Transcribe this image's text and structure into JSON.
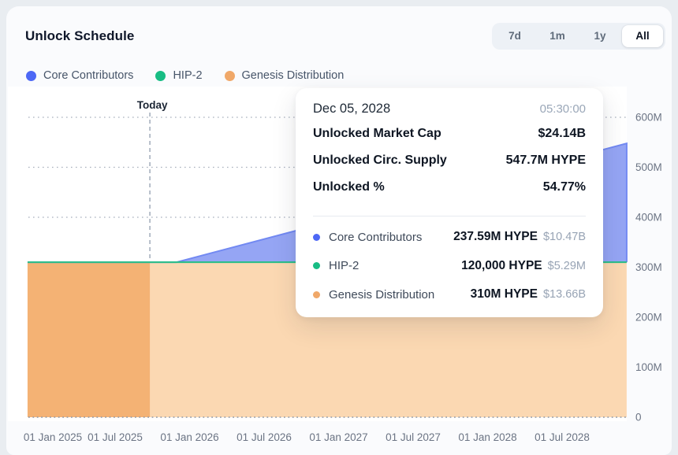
{
  "header": {
    "title": "Unlock Schedule",
    "range_buttons": [
      {
        "label": "7d",
        "active": false
      },
      {
        "label": "1m",
        "active": false
      },
      {
        "label": "1y",
        "active": false
      },
      {
        "label": "All",
        "active": true
      }
    ]
  },
  "legend": [
    {
      "label": "Core Contributors",
      "color": "#4d68f5"
    },
    {
      "label": "HIP-2",
      "color": "#18bd84"
    },
    {
      "label": "Genesis Distribution",
      "color": "#f0a869"
    }
  ],
  "tooltip": {
    "date": "Dec 05, 2028",
    "time": "05:30:00",
    "stats": [
      {
        "label": "Unlocked Market Cap",
        "value": "$24.14B"
      },
      {
        "label": "Unlocked Circ. Supply",
        "value": "547.7M HYPE"
      },
      {
        "label": "Unlocked %",
        "value": "54.77%"
      }
    ],
    "series": [
      {
        "name": "Core Contributors",
        "color": "#4d68f5",
        "amount": "237.59M HYPE",
        "usd": "$10.47B"
      },
      {
        "name": "HIP-2",
        "color": "#18bd84",
        "amount": "120,000 HYPE",
        "usd": "$5.29M"
      },
      {
        "name": "Genesis Distribution",
        "color": "#f0a869",
        "amount": "310M HYPE",
        "usd": "$13.66B"
      }
    ]
  },
  "chart_data": {
    "type": "area",
    "stacked": true,
    "unit": "M HYPE",
    "x_unit": "months since 01 Jan 2025",
    "ylim": [
      0,
      620
    ],
    "today": {
      "m": 8.8,
      "label": "Today"
    },
    "x_ticks": [
      {
        "m": 0,
        "label": "01 Jan 2025"
      },
      {
        "m": 6,
        "label": "01 Jul 2025"
      },
      {
        "m": 12,
        "label": "01 Jan 2026"
      },
      {
        "m": 18,
        "label": "01 Jul 2026"
      },
      {
        "m": 24,
        "label": "01 Jan 2027"
      },
      {
        "m": 30,
        "label": "01 Jul 2027"
      },
      {
        "m": 36,
        "label": "01 Jan 2028"
      },
      {
        "m": 42,
        "label": "01 Jul 2028"
      }
    ],
    "y_ticks": [
      {
        "v": 0,
        "label": "0"
      },
      {
        "v": 100,
        "label": "100M"
      },
      {
        "v": 200,
        "label": "200M"
      },
      {
        "v": 300,
        "label": "300M"
      },
      {
        "v": 400,
        "label": "400M"
      },
      {
        "v": 500,
        "label": "500M"
      },
      {
        "v": 600,
        "label": "600M"
      }
    ],
    "series": [
      {
        "name": "Genesis Distribution",
        "render": "area",
        "color_past": "#f4b274",
        "color_future": "#fbd8b2",
        "points": [
          {
            "m": -1.05,
            "v": 310
          },
          {
            "m": 47.2,
            "v": 310
          }
        ]
      },
      {
        "name": "HIP-2",
        "render": "line",
        "stroke": "#2ebd8b",
        "points": [
          {
            "m": -1.05,
            "v": 0.12
          },
          {
            "m": 47.2,
            "v": 0.12
          }
        ]
      },
      {
        "name": "Core Contributors",
        "render": "area",
        "color_past": "#95a5f4",
        "color_future": "#95a5f4",
        "stroke": "#7289f2",
        "points": [
          {
            "m": -1.05,
            "v": 0
          },
          {
            "m": 10.95,
            "v": 0
          },
          {
            "m": 47.2,
            "v": 237.59
          }
        ]
      }
    ]
  }
}
